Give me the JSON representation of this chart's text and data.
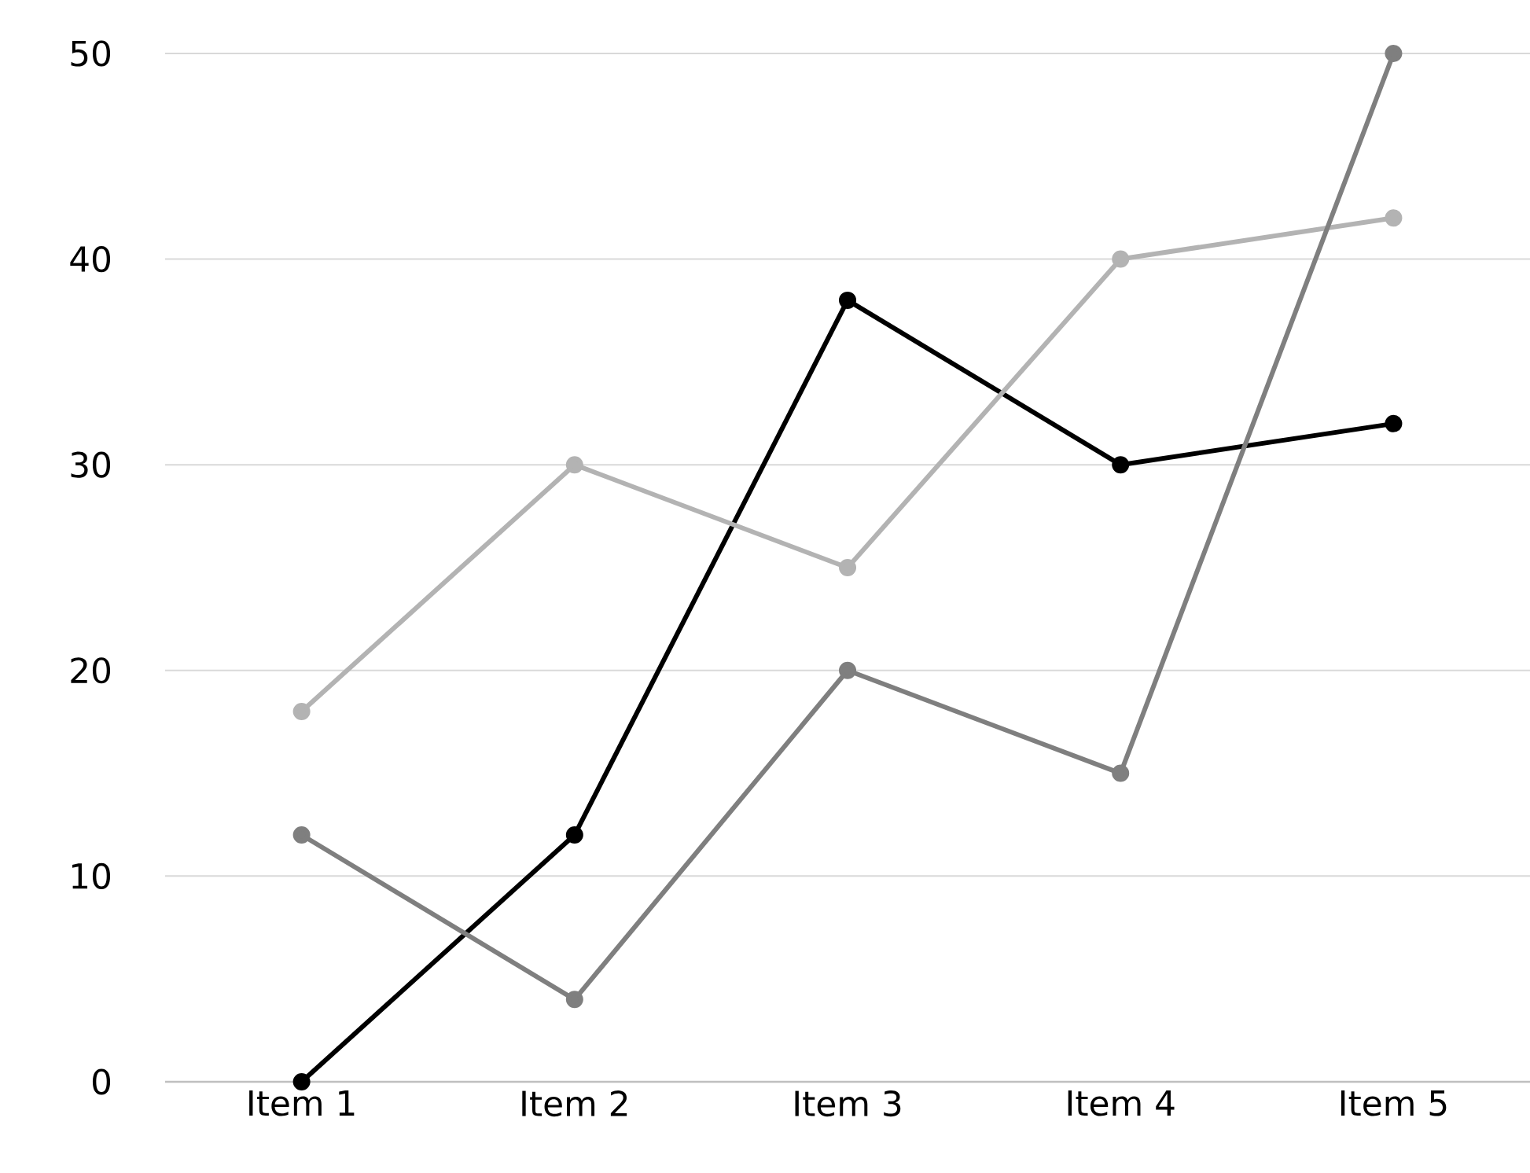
{
  "chart_data": {
    "type": "line",
    "categories": [
      "Item 1",
      "Item 2",
      "Item 3",
      "Item 4",
      "Item 5"
    ],
    "series": [
      {
        "color": "#000000",
        "values": [
          0,
          12,
          38,
          30,
          32
        ]
      },
      {
        "color": "#b3b3b3",
        "values": [
          18,
          30,
          25,
          40,
          42
        ]
      },
      {
        "color": "#7f7f7f",
        "values": [
          12,
          4,
          20,
          15,
          50
        ]
      }
    ],
    "ylim": [
      0,
      50
    ],
    "yticks": [
      0,
      10,
      20,
      30,
      40,
      50
    ],
    "grid": "y",
    "marker": "circle"
  }
}
